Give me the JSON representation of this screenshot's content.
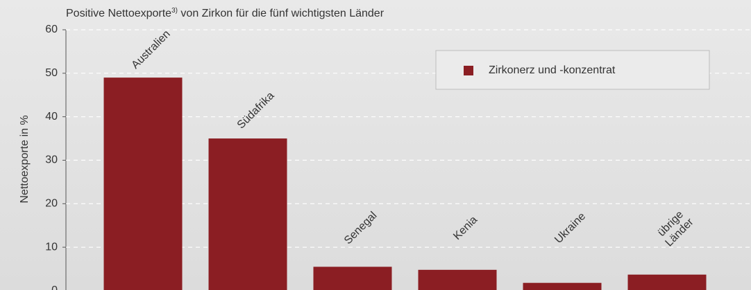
{
  "chart_data": {
    "type": "bar",
    "title": [
      "Positive Nettoexporte",
      "3)",
      " von Zirkon für die fünf wichtigsten Länder"
    ],
    "y_label": "Nettoexporte in %",
    "categories": [
      [
        "Australien"
      ],
      [
        "Südafrika"
      ],
      [
        "Senegal"
      ],
      [
        "Kenia"
      ],
      [
        "Ukraine"
      ],
      [
        "übrige",
        "Länder"
      ]
    ],
    "series": [
      {
        "name": "Zirkonerz und -konzentrat",
        "color": "#8b1e23",
        "values": [
          49,
          35,
          5.5,
          4.8,
          1.8,
          3.7
        ]
      }
    ],
    "ylim": [
      0,
      60
    ],
    "yticks": [
      0,
      10,
      20,
      30,
      40,
      50,
      60
    ],
    "grid": true,
    "legend": "upper right"
  }
}
